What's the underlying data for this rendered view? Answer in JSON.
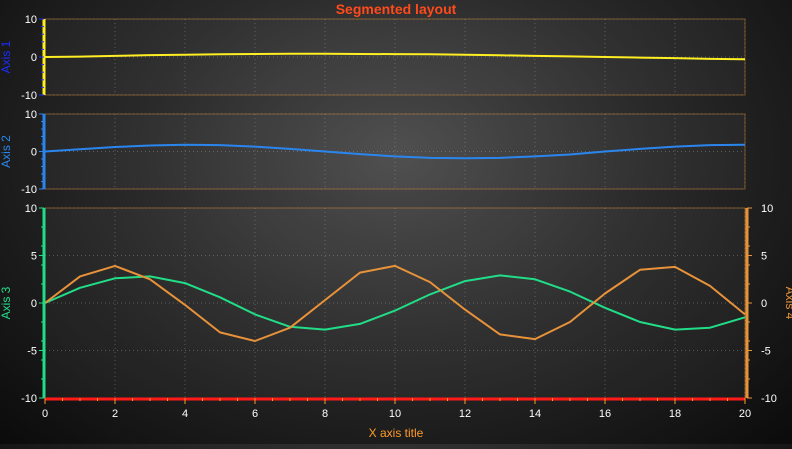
{
  "chart_data": {
    "type": "line",
    "title": "Segmented layout",
    "xlabel": "X axis title",
    "xlim": [
      0,
      20
    ],
    "x_ticks": [
      "0",
      "2",
      "4",
      "6",
      "8",
      "10",
      "12",
      "14",
      "16",
      "18",
      "20"
    ],
    "grid": true,
    "colors": {
      "title": "#ff4a1c",
      "xaxis": "#ff9a2a",
      "xaxis_line": "#ff1a1a",
      "axis1": "#1a2cff",
      "axis2": "#2a86ee",
      "axis3": "#22dd88",
      "axis4": "#e8923a",
      "segment_border": "#c07a2a"
    },
    "axes": [
      {
        "id": "axis1",
        "title": "Axis 1",
        "ylim": [
          -10,
          10
        ],
        "ticks": [
          "10",
          "0",
          "-10"
        ],
        "color": "#1a2cff",
        "line_color": "#ffee22",
        "side": "left",
        "segment": 0
      },
      {
        "id": "axis2",
        "title": "Axis 2",
        "ylim": [
          -10,
          10
        ],
        "ticks": [
          "10",
          "0",
          "-10"
        ],
        "color": "#2a86ee",
        "line_color": "#2a86ee",
        "side": "left",
        "segment": 1
      },
      {
        "id": "axis3",
        "title": "Axis 3",
        "ylim": [
          -10,
          10
        ],
        "ticks": [
          "10",
          "5",
          "0",
          "-5",
          "-10"
        ],
        "color": "#22dd88",
        "line_color": "#22dd88",
        "side": "left",
        "segment": 2
      },
      {
        "id": "axis4",
        "title": "Axis 4",
        "ylim": [
          -10,
          10
        ],
        "ticks": [
          "10",
          "5",
          "0",
          "-5",
          "-10"
        ],
        "color": "#e8923a",
        "line_color": "#e8923a",
        "side": "right",
        "segment": 2
      }
    ],
    "series": [
      {
        "axis": "axis1",
        "x": [
          0,
          1,
          2,
          3,
          4,
          5,
          6,
          7,
          8,
          9,
          10,
          11,
          12,
          13,
          14,
          15,
          16,
          17,
          18,
          19,
          20
        ],
        "values": [
          0,
          0.1,
          0.3,
          0.5,
          0.6,
          0.7,
          0.8,
          0.85,
          0.85,
          0.8,
          0.75,
          0.7,
          0.6,
          0.45,
          0.3,
          0.15,
          0,
          -0.15,
          -0.3,
          -0.5,
          -0.6
        ]
      },
      {
        "axis": "axis2",
        "x": [
          0,
          1,
          2,
          3,
          4,
          5,
          6,
          7,
          8,
          9,
          10,
          11,
          12,
          13,
          14,
          15,
          16,
          17,
          18,
          19,
          20
        ],
        "values": [
          0,
          0.6,
          1.2,
          1.6,
          1.8,
          1.7,
          1.3,
          0.7,
          0,
          -0.7,
          -1.3,
          -1.7,
          -1.8,
          -1.7,
          -1.3,
          -0.8,
          0,
          0.7,
          1.3,
          1.7,
          1.8
        ]
      },
      {
        "axis": "axis3",
        "x": [
          0,
          1,
          2,
          3,
          4,
          5,
          6,
          7,
          8,
          9,
          10,
          11,
          12,
          13,
          14,
          15,
          16,
          17,
          18,
          19,
          20
        ],
        "values": [
          0,
          1.6,
          2.6,
          2.8,
          2.1,
          0.6,
          -1.2,
          -2.5,
          -2.8,
          -2.2,
          -0.8,
          0.9,
          2.3,
          2.9,
          2.5,
          1.2,
          -0.5,
          -2.0,
          -2.8,
          -2.6,
          -1.5
        ]
      },
      {
        "axis": "axis4",
        "x": [
          0,
          1,
          2,
          3,
          4,
          5,
          6,
          7,
          8,
          9,
          10,
          11,
          12,
          13,
          14,
          15,
          16,
          17,
          18,
          19,
          20
        ],
        "values": [
          0,
          2.8,
          3.9,
          2.5,
          -0.2,
          -3.1,
          -4.0,
          -2.6,
          0.3,
          3.2,
          3.9,
          2.2,
          -0.7,
          -3.3,
          -3.8,
          -2.0,
          1.0,
          3.5,
          3.8,
          1.8,
          -1.2
        ]
      }
    ]
  }
}
